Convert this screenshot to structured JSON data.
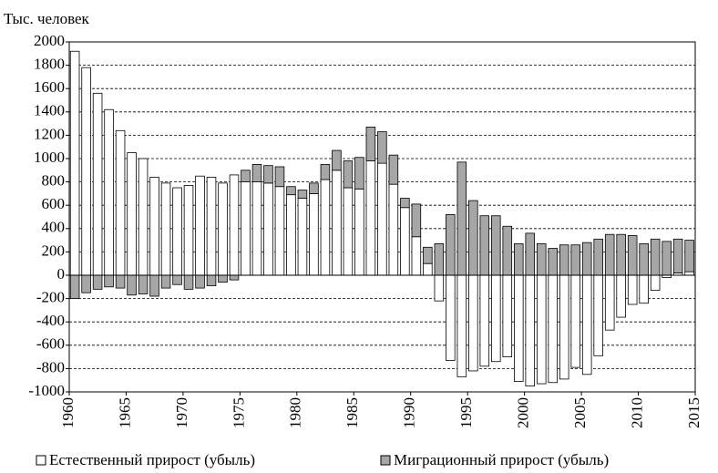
{
  "chart_data": {
    "type": "bar",
    "y_label": "Тыс. человек",
    "x": [
      1960,
      1961,
      1962,
      1963,
      1964,
      1965,
      1966,
      1967,
      1968,
      1969,
      1970,
      1971,
      1972,
      1973,
      1974,
      1975,
      1976,
      1977,
      1978,
      1979,
      1980,
      1981,
      1982,
      1983,
      1984,
      1985,
      1986,
      1987,
      1988,
      1989,
      1990,
      1991,
      1992,
      1993,
      1994,
      1995,
      1996,
      1997,
      1998,
      1999,
      2000,
      2001,
      2002,
      2003,
      2004,
      2005,
      2006,
      2007,
      2008,
      2009,
      2010,
      2011,
      2012,
      2013,
      2014
    ],
    "series": [
      {
        "name": "Естественный прирост (убыль)",
        "color": "#ffffff",
        "values": [
          1920,
          1780,
          1560,
          1420,
          1240,
          1050,
          1000,
          840,
          790,
          750,
          770,
          850,
          840,
          790,
          860,
          800,
          800,
          790,
          760,
          690,
          660,
          700,
          820,
          900,
          750,
          740,
          980,
          960,
          780,
          580,
          330,
          100,
          -220,
          -730,
          -870,
          -820,
          -780,
          -740,
          -700,
          -910,
          -950,
          -930,
          -920,
          -890,
          -790,
          -850,
          -690,
          -470,
          -360,
          -250,
          -240,
          -130,
          -20,
          20,
          30
        ]
      },
      {
        "name": "Миграционный прирост (убыль)",
        "color": "#a6a6a6",
        "values": [
          -200,
          -150,
          -120,
          -100,
          -110,
          -170,
          -160,
          -180,
          -110,
          -80,
          -120,
          -110,
          -90,
          -60,
          -40,
          100,
          150,
          150,
          170,
          70,
          70,
          90,
          130,
          170,
          230,
          270,
          290,
          270,
          250,
          80,
          280,
          140,
          270,
          520,
          970,
          640,
          510,
          510,
          420,
          270,
          360,
          270,
          230,
          260,
          260,
          280,
          310,
          350,
          350,
          340,
          270,
          310,
          290,
          290,
          270
        ]
      }
    ],
    "stacked": true,
    "xlim": [
      1960,
      2015
    ],
    "xticks": [
      1960,
      1965,
      1970,
      1975,
      1980,
      1985,
      1990,
      1995,
      2000,
      2005,
      2010,
      2015
    ],
    "ylim": [
      -1000,
      2000
    ],
    "yticks": [
      -1000,
      -800,
      -600,
      -400,
      -200,
      0,
      200,
      400,
      600,
      800,
      1000,
      1200,
      1400,
      1600,
      1800,
      2000
    ],
    "grid": true,
    "legend": "bottom"
  }
}
